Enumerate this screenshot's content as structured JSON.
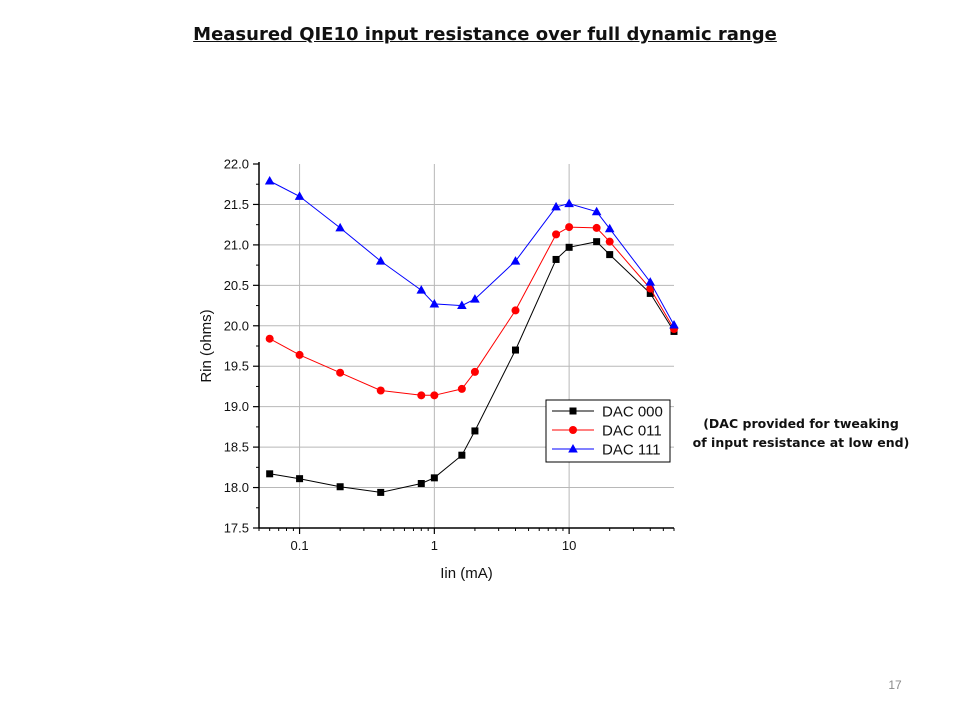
{
  "slide": {
    "title": "Measured QIE10 input resistance over full dynamic range",
    "note_line1": "(DAC provided for tweaking",
    "note_line2": "of input resistance at low end)",
    "page_number": "17"
  },
  "chart_data": {
    "type": "line",
    "title": "",
    "xlabel": "Iin (mA)",
    "ylabel": "Rin (ohms)",
    "xscale": "log",
    "xlim": [
      0.05,
      60
    ],
    "ylim": [
      17.5,
      22.0
    ],
    "xticks": [
      0.1,
      1,
      10
    ],
    "xtick_labels": [
      "0.1",
      "1",
      "10"
    ],
    "yticks": [
      17.5,
      18.0,
      18.5,
      19.0,
      19.5,
      20.0,
      20.5,
      21.0,
      21.5,
      22.0
    ],
    "ytick_labels": [
      "17.5",
      "18.0",
      "18.5",
      "19.0",
      "19.5",
      "20.0",
      "20.5",
      "21.0",
      "21.5",
      "22.0"
    ],
    "grid": true,
    "legend_position": "lower-right",
    "series": [
      {
        "name": "DAC 000",
        "color": "#000000",
        "marker": "square",
        "x": [
          0.06,
          0.1,
          0.2,
          0.4,
          0.8,
          1.0,
          1.6,
          2.0,
          4.0,
          8.0,
          10.0,
          16.0,
          20.0,
          40.0,
          60.0
        ],
        "y": [
          18.17,
          18.11,
          18.01,
          17.94,
          18.05,
          18.12,
          18.4,
          18.7,
          19.7,
          20.82,
          20.97,
          21.04,
          20.88,
          20.4,
          19.93
        ]
      },
      {
        "name": "DAC 011",
        "color": "#ff0000",
        "marker": "circle",
        "x": [
          0.06,
          0.1,
          0.2,
          0.4,
          0.8,
          1.0,
          1.6,
          2.0,
          4.0,
          8.0,
          10.0,
          16.0,
          20.0,
          40.0,
          60.0
        ],
        "y": [
          19.84,
          19.64,
          19.42,
          19.2,
          19.14,
          19.14,
          19.22,
          19.43,
          20.19,
          21.13,
          21.22,
          21.21,
          21.04,
          20.46,
          19.96
        ]
      },
      {
        "name": "DAC 111",
        "color": "#0000ff",
        "marker": "triangle",
        "x": [
          0.06,
          0.1,
          0.2,
          0.4,
          0.8,
          1.0,
          1.6,
          2.0,
          4.0,
          8.0,
          10.0,
          16.0,
          20.0,
          40.0,
          60.0
        ],
        "y": [
          21.79,
          21.6,
          21.21,
          20.8,
          20.44,
          20.27,
          20.25,
          20.33,
          20.8,
          21.47,
          21.51,
          21.41,
          21.2,
          20.54,
          20.01
        ]
      }
    ]
  }
}
